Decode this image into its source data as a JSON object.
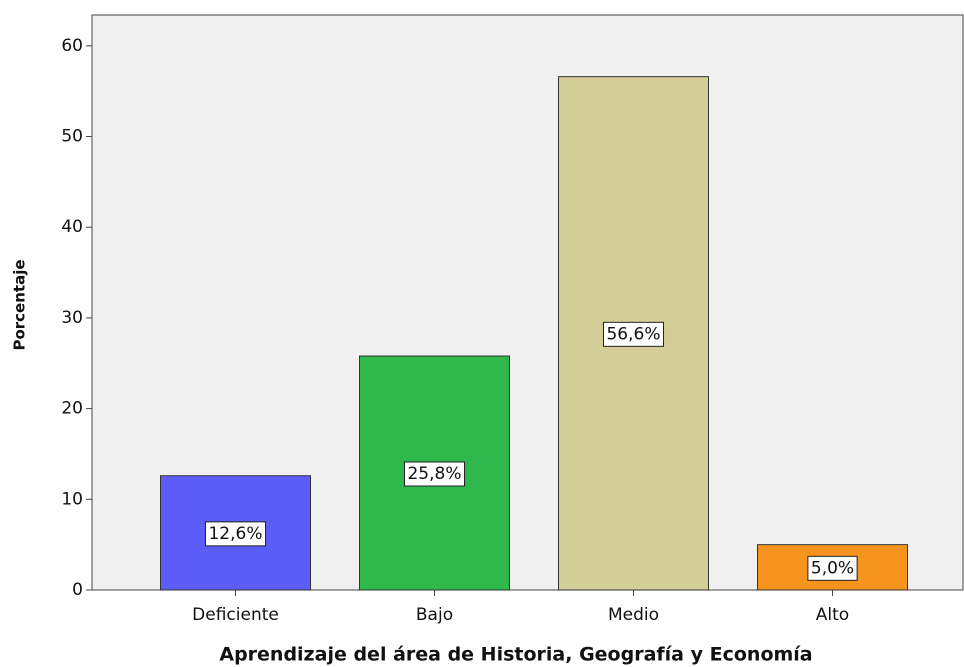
{
  "chart_data": {
    "type": "bar",
    "categories": [
      "Deficiente",
      "Bajo",
      "Medio",
      "Alto"
    ],
    "values": [
      12.6,
      25.8,
      56.6,
      5.0
    ],
    "value_labels": [
      "12,6%",
      "25,8%",
      "56,6%",
      "5,0%"
    ],
    "colors": [
      "#5c5cf8",
      "#2fb84b",
      "#d3cd98",
      "#f7941d"
    ],
    "xlabel": "Aprendizaje del área de Historia, Geografía y Economía",
    "ylabel": "Porcentaje",
    "ylim": [
      0,
      63.4
    ],
    "yticks": [
      0,
      10,
      20,
      30,
      40,
      50,
      60
    ]
  }
}
